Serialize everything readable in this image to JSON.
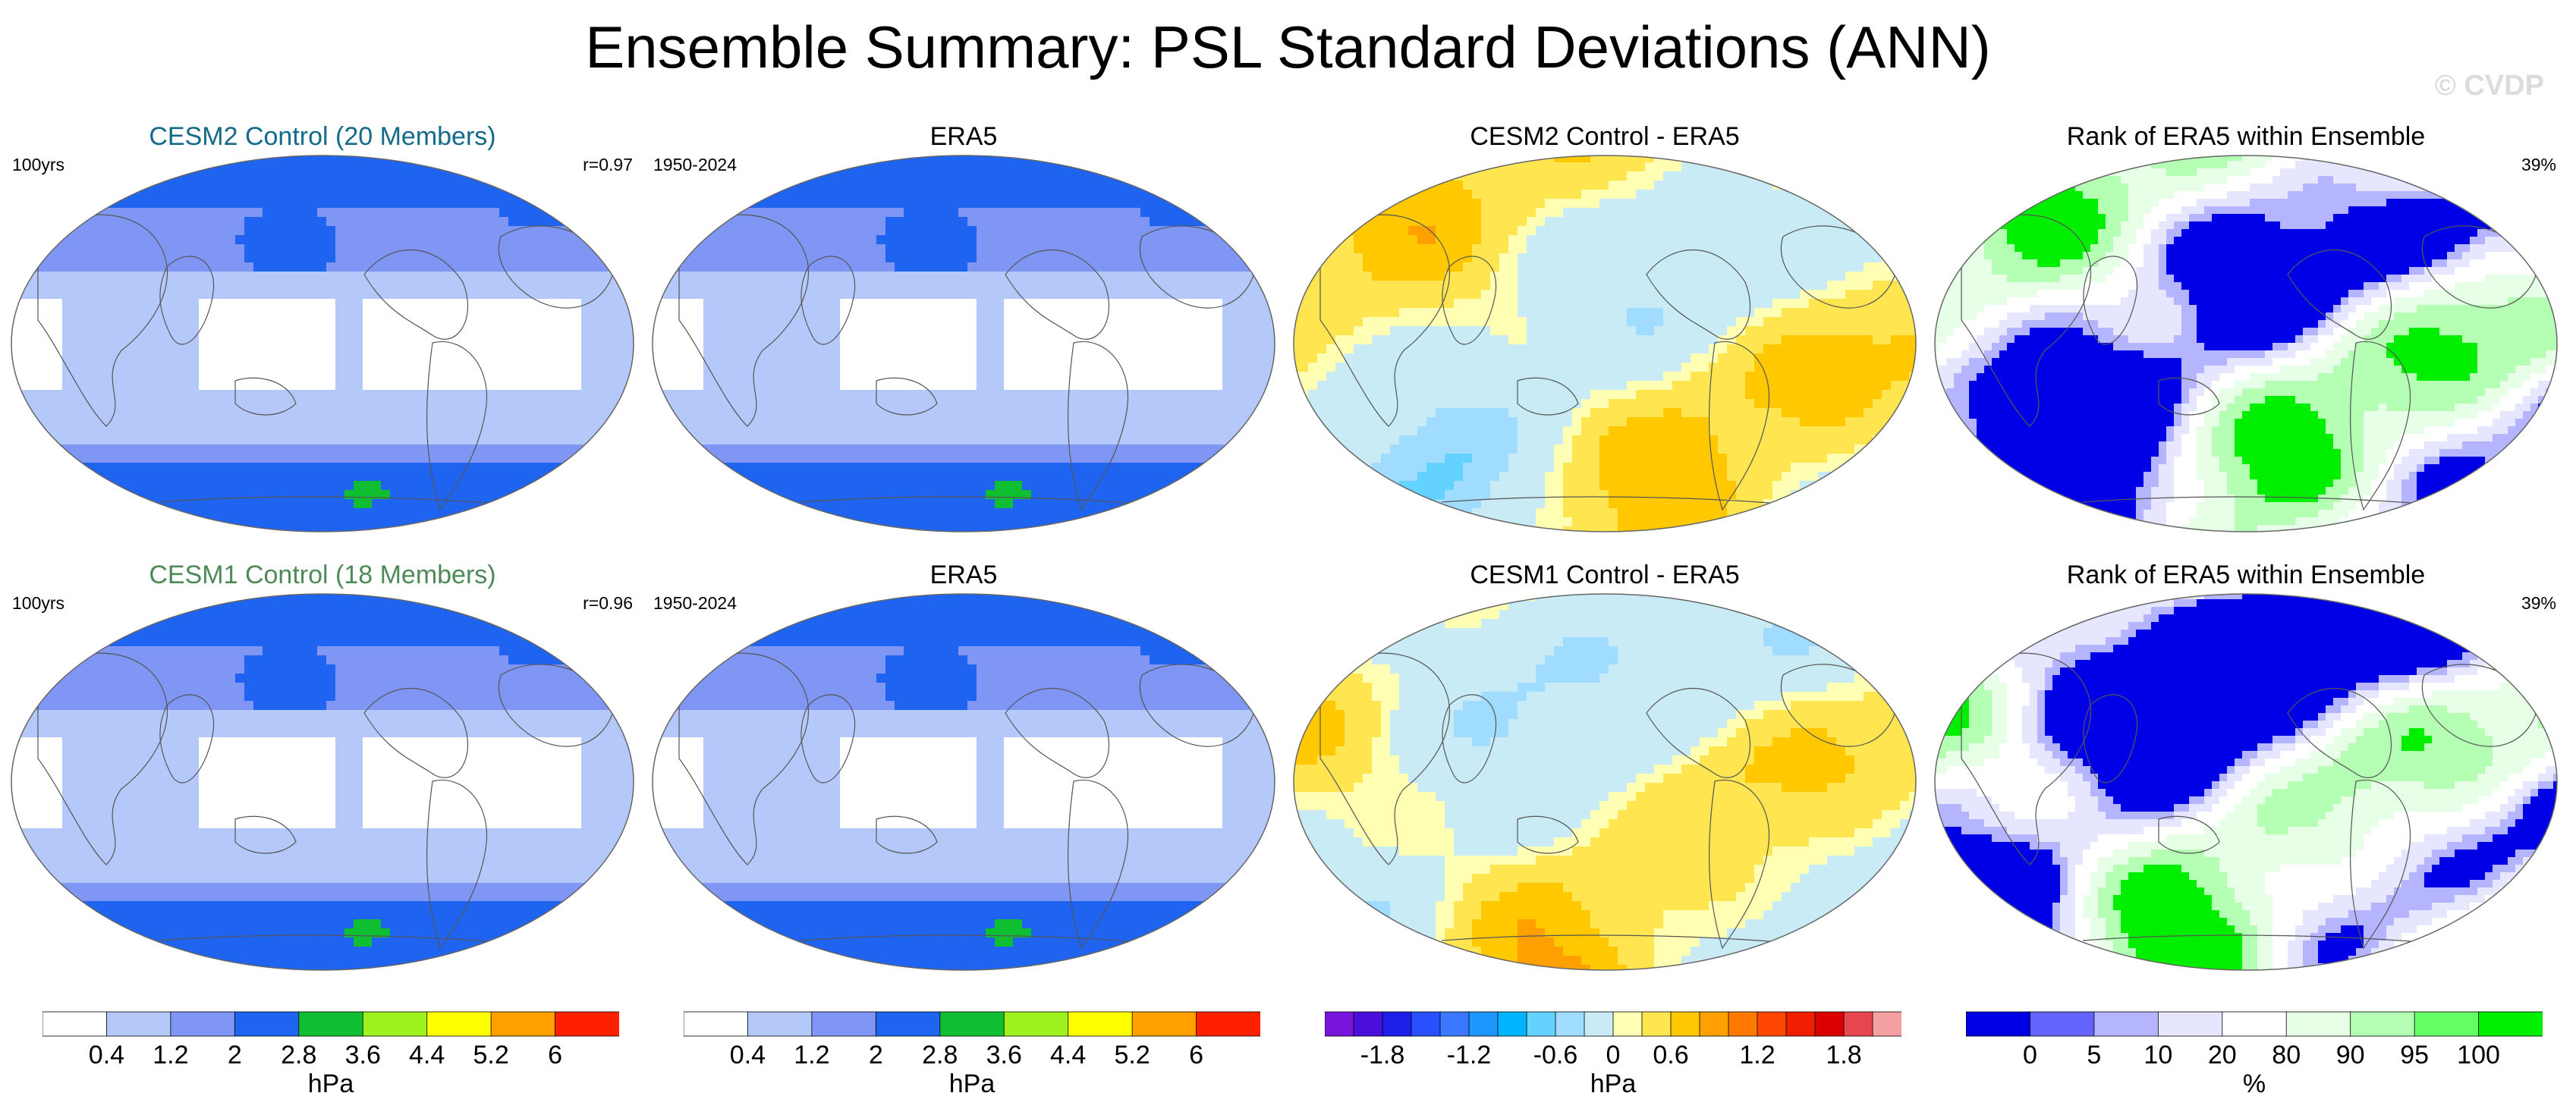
{
  "title": "Ensemble Summary: PSL Standard Deviations (ANN)",
  "watermark": "© CVDP",
  "chart_data": [
    {
      "type": "heatmap",
      "title": "CESM2 Control (20 Members)",
      "title_color": "#136a8a",
      "left_text": "100yrs",
      "right_text": "r=0.97",
      "field": "std",
      "pattern": "a",
      "colorbar": "std"
    },
    {
      "type": "heatmap",
      "title": "ERA5",
      "title_color": "#000000",
      "left_text": "1950-2024",
      "right_text": "",
      "field": "std",
      "pattern": "b",
      "colorbar": "std"
    },
    {
      "type": "heatmap",
      "title": "CESM2 Control - ERA5",
      "title_color": "#000000",
      "left_text": "",
      "right_text": "",
      "field": "diff",
      "pattern": "a",
      "colorbar": "diff"
    },
    {
      "type": "heatmap",
      "title": "Rank of ERA5 within Ensemble",
      "title_color": "#000000",
      "left_text": "",
      "right_text": "39%",
      "field": "rank",
      "pattern": "a",
      "colorbar": "rank"
    },
    {
      "type": "heatmap",
      "title": "CESM1 Control (18 Members)",
      "title_color": "#4d8a57",
      "left_text": "100yrs",
      "right_text": "r=0.96",
      "field": "std",
      "pattern": "c",
      "colorbar": "std"
    },
    {
      "type": "heatmap",
      "title": "ERA5",
      "title_color": "#000000",
      "left_text": "1950-2024",
      "right_text": "",
      "field": "std",
      "pattern": "b",
      "colorbar": "std"
    },
    {
      "type": "heatmap",
      "title": "CESM1 Control - ERA5",
      "title_color": "#000000",
      "left_text": "",
      "right_text": "",
      "field": "diff",
      "pattern": "b",
      "colorbar": "diff"
    },
    {
      "type": "heatmap",
      "title": "Rank of ERA5 within Ensemble",
      "title_color": "#000000",
      "left_text": "",
      "right_text": "39%",
      "field": "rank",
      "pattern": "b",
      "colorbar": "rank"
    }
  ],
  "colorbars": {
    "std": {
      "unit": "hPa",
      "colors": [
        "#ffffff",
        "#b4c8fa",
        "#7f96f5",
        "#1e64f0",
        "#10be32",
        "#9ef01e",
        "#ffff00",
        "#ffa000",
        "#ff2000"
      ],
      "ticks": [
        "0.4",
        "1.2",
        "2",
        "2.8",
        "3.6",
        "4.4",
        "5.2",
        "6"
      ]
    },
    "diff": {
      "unit": "hPa",
      "colors": [
        "#7814dc",
        "#4b0fdc",
        "#1e1eeb",
        "#2850ff",
        "#3c78ff",
        "#1e96ff",
        "#00b4ff",
        "#64d2ff",
        "#a0dcff",
        "#c8ebf5",
        "#ffffb4",
        "#ffe650",
        "#ffc800",
        "#ffa000",
        "#ff7800",
        "#ff4600",
        "#f01e00",
        "#dc0000",
        "#e64650",
        "#f5a0a0"
      ],
      "ticks": [
        "-1.8",
        "-1.2",
        "-0.6",
        "0",
        "0.6",
        "1.2",
        "1.8"
      ]
    },
    "rank": {
      "unit": "%",
      "colors": [
        "#0000e6",
        "#6464ff",
        "#b4b4ff",
        "#e6e6ff",
        "#ffffff",
        "#e6ffe6",
        "#b4ffb4",
        "#64ff64",
        "#00ee00"
      ],
      "ticks": [
        "0",
        "5",
        "10",
        "20",
        "80",
        "90",
        "95",
        "100"
      ]
    }
  }
}
